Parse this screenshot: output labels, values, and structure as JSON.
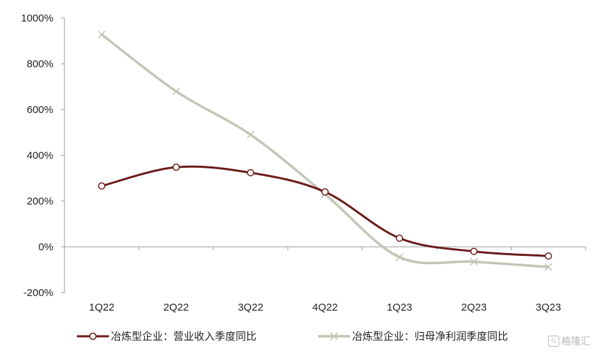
{
  "chart_data": {
    "type": "line",
    "categories": [
      "1Q22",
      "2Q22",
      "3Q22",
      "4Q22",
      "1Q23",
      "2Q23",
      "3Q23"
    ],
    "y_ticks": [
      "1000%",
      "800%",
      "600%",
      "400%",
      "200%",
      "0%",
      "-200%"
    ],
    "ylim": [
      -200,
      1000
    ],
    "ylabel": "",
    "xlabel": "",
    "grid": false,
    "legend_position": "bottom",
    "series": [
      {
        "name": "冶炼型企业：营业收入季度同比",
        "values": [
          266,
          348,
          324,
          240,
          38,
          -20,
          -40
        ],
        "color": "#6b1a1a",
        "marker": "circle"
      },
      {
        "name": "冶炼型企业：归母净利润季度同比",
        "values": [
          928,
          680,
          490,
          230,
          -45,
          -65,
          -88
        ],
        "color": "#c4c5b5",
        "marker": "x"
      }
    ]
  },
  "watermark": {
    "logo": "G",
    "text": "格隆汇"
  }
}
